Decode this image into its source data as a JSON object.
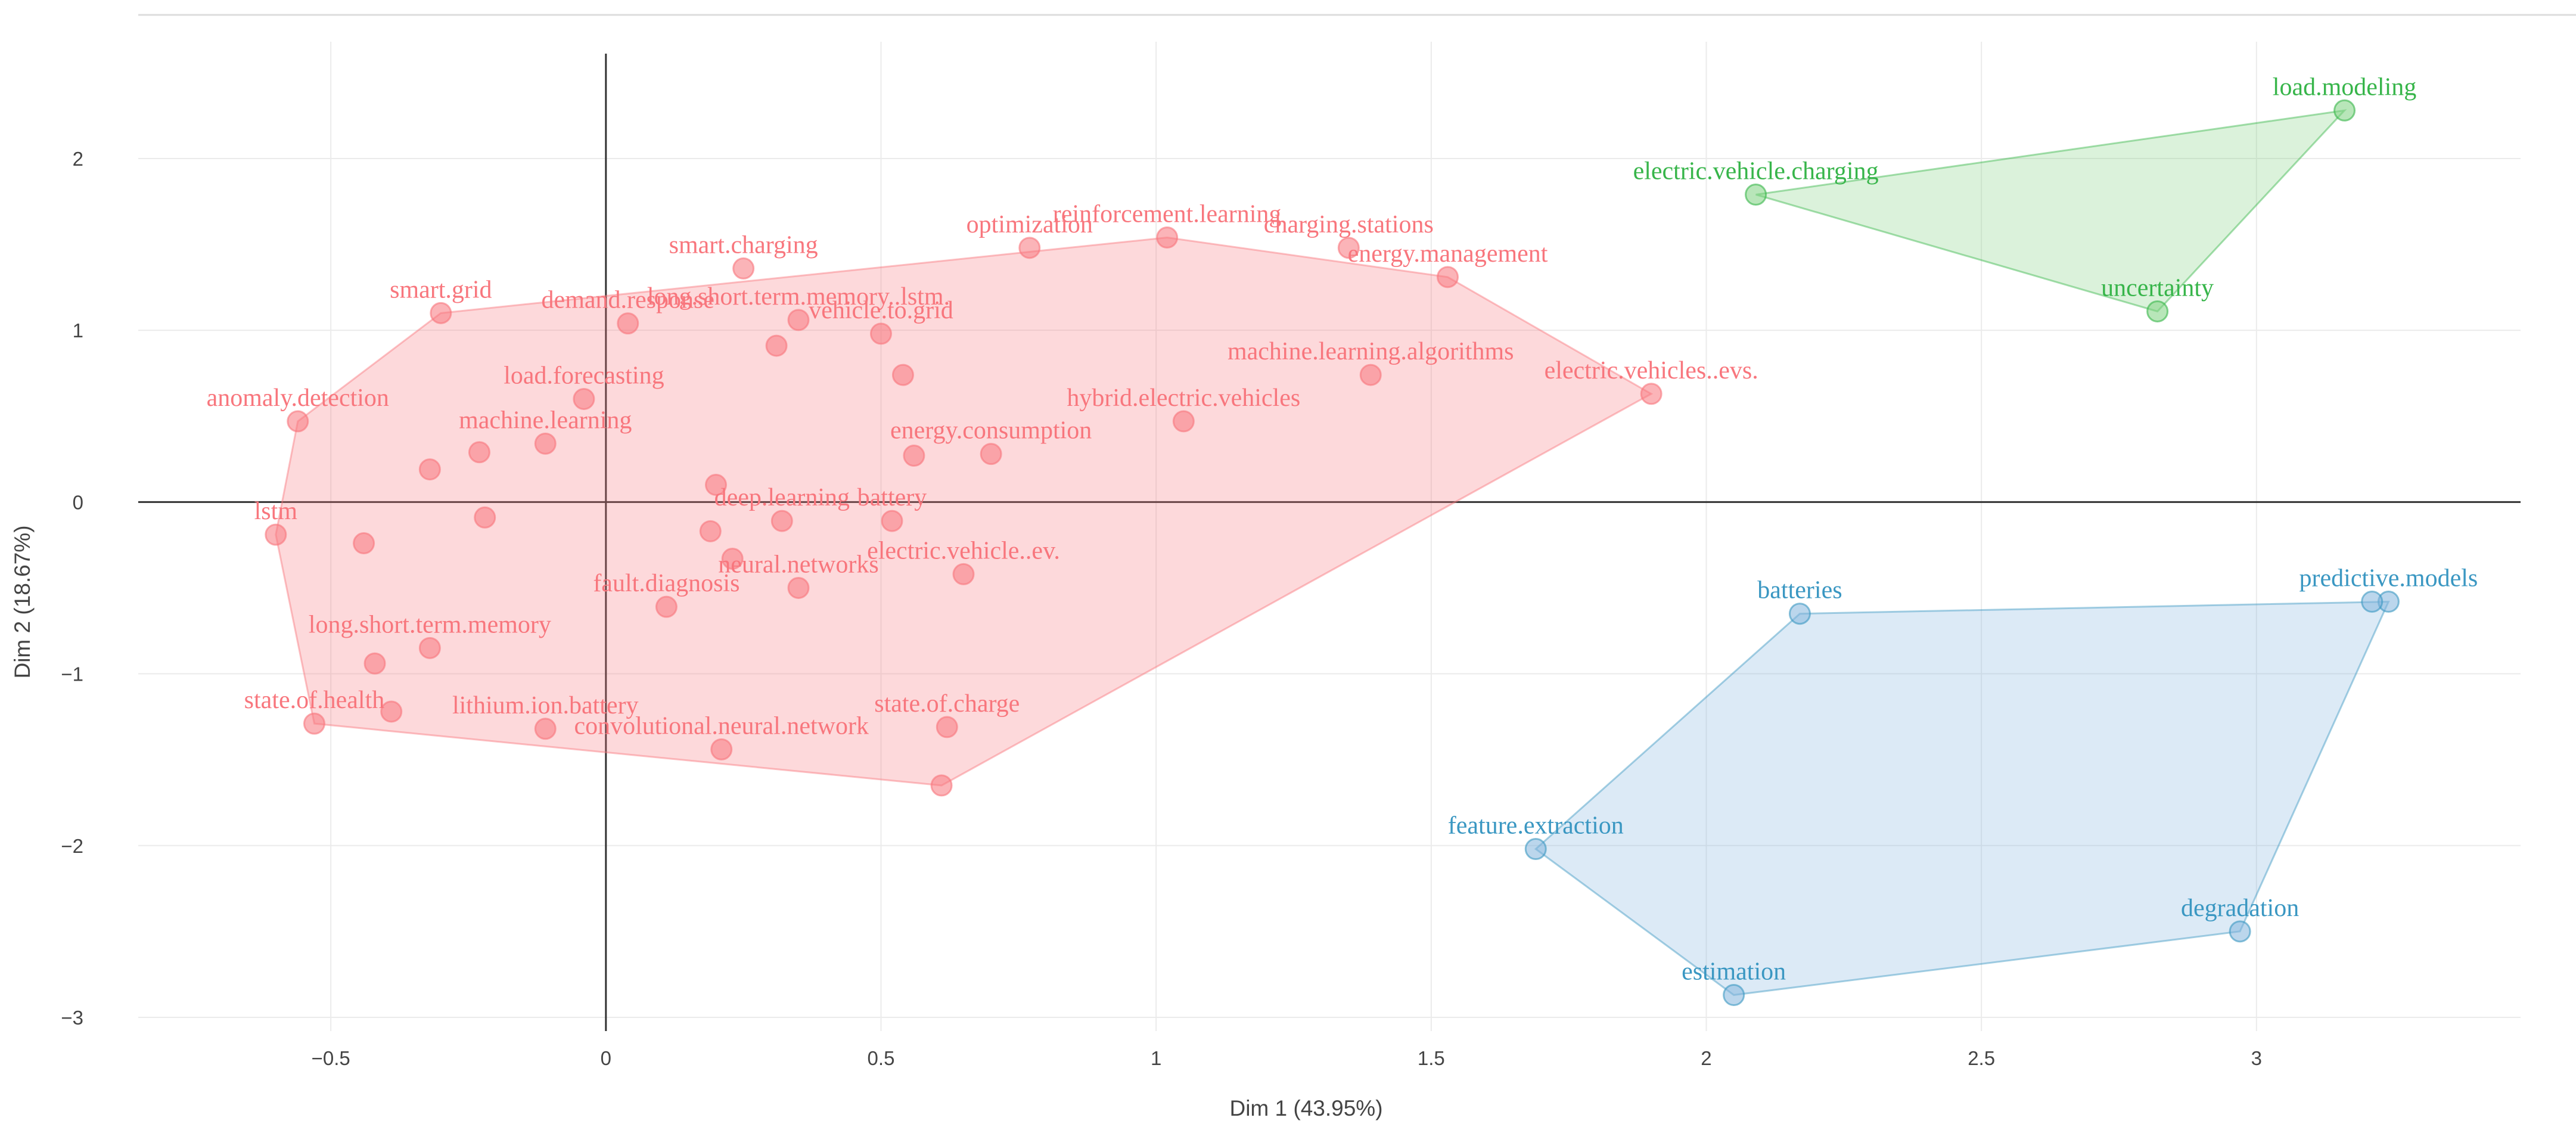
{
  "chart_data": {
    "type": "scatter",
    "title": "",
    "xlabel": "Dim 1 (43.95%)",
    "ylabel": "Dim 2 (18.67%)",
    "xlim": [
      -0.85,
      3.48
    ],
    "ylim": [
      -3.08,
      2.68
    ],
    "xticks": [
      -0.5,
      0,
      0.5,
      1,
      1.5,
      2,
      2.5,
      3
    ],
    "xtick_labels": [
      "−0.5",
      "0",
      "0.5",
      "1",
      "1.5",
      "2",
      "2.5",
      "3"
    ],
    "yticks": [
      -3,
      -2,
      -1,
      0,
      1,
      2
    ],
    "ytick_labels": [
      "−3",
      "−2",
      "−1",
      "0",
      "1",
      "2"
    ],
    "grid": true,
    "clusters": [
      {
        "id": 1,
        "color": "#f8767d",
        "fill": "#f8767d",
        "hull": [
          [
            -0.6,
            -0.19
          ],
          [
            -0.53,
            -1.29
          ],
          [
            0.61,
            -1.65
          ],
          [
            1.9,
            0.63
          ],
          [
            1.53,
            1.31
          ],
          [
            1.02,
            1.54
          ],
          [
            -0.3,
            1.1
          ],
          [
            -0.56,
            0.47
          ]
        ],
        "points": [
          {
            "label": "anomaly.detection",
            "x": -0.56,
            "y": 0.47
          },
          {
            "label": "smart.grid",
            "x": -0.3,
            "y": 1.1
          },
          {
            "label": "load.forecasting",
            "x": -0.04,
            "y": 0.6
          },
          {
            "label": "machine.learning",
            "x": -0.11,
            "y": 0.34
          },
          {
            "label": "",
            "x": -0.32,
            "y": 0.19
          },
          {
            "label": "",
            "x": -0.23,
            "y": 0.29
          },
          {
            "label": "lstm",
            "x": -0.6,
            "y": -0.19
          },
          {
            "label": "",
            "x": -0.44,
            "y": -0.24
          },
          {
            "label": "",
            "x": -0.22,
            "y": -0.09
          },
          {
            "label": "long.short.term.memory",
            "x": -0.32,
            "y": -0.85
          },
          {
            "label": "",
            "x": -0.42,
            "y": -0.94
          },
          {
            "label": "state.of.health",
            "x": -0.53,
            "y": -1.29
          },
          {
            "label": "",
            "x": -0.39,
            "y": -1.22
          },
          {
            "label": "lithium.ion.battery",
            "x": -0.11,
            "y": -1.32
          },
          {
            "label": "demand.response",
            "x": 0.04,
            "y": 1.04
          },
          {
            "label": "smart.charging",
            "x": 0.25,
            "y": 1.36
          },
          {
            "label": "long.short.term.memory..lstm.",
            "x": 0.35,
            "y": 1.06
          },
          {
            "label": "",
            "x": 0.31,
            "y": 0.91
          },
          {
            "label": "vehicle.to.grid",
            "x": 0.5,
            "y": 0.98
          },
          {
            "label": "",
            "x": 0.54,
            "y": 0.74
          },
          {
            "label": "deep.learning",
            "x": 0.32,
            "y": -0.11
          },
          {
            "label": "",
            "x": 0.2,
            "y": 0.1
          },
          {
            "label": "",
            "x": 0.19,
            "y": -0.17
          },
          {
            "label": "neural.networks",
            "x": 0.35,
            "y": -0.5
          },
          {
            "label": "",
            "x": 0.23,
            "y": -0.33
          },
          {
            "label": "fault.diagnosis",
            "x": 0.11,
            "y": -0.61
          },
          {
            "label": "convolutional.neural.network",
            "x": 0.21,
            "y": -1.44
          },
          {
            "label": "battery",
            "x": 0.52,
            "y": -0.11
          },
          {
            "label": "energy.consumption",
            "x": 0.7,
            "y": 0.28
          },
          {
            "label": "",
            "x": 0.56,
            "y": 0.27
          },
          {
            "label": "electric.vehicle..ev.",
            "x": 0.65,
            "y": -0.42
          },
          {
            "label": "state.of.charge",
            "x": 0.62,
            "y": -1.31
          },
          {
            "label": "",
            "x": 0.61,
            "y": -1.65
          },
          {
            "label": "optimization",
            "x": 0.77,
            "y": 1.48
          },
          {
            "label": "reinforcement.learning",
            "x": 1.02,
            "y": 1.54
          },
          {
            "label": "charging.stations",
            "x": 1.35,
            "y": 1.48
          },
          {
            "label": "energy.management",
            "x": 1.53,
            "y": 1.31
          },
          {
            "label": "machine.learning.algorithms",
            "x": 1.39,
            "y": 0.74
          },
          {
            "label": "hybrid.electric.vehicles",
            "x": 1.05,
            "y": 0.47
          },
          {
            "label": "electric.vehicles..evs.",
            "x": 1.9,
            "y": 0.63
          }
        ]
      },
      {
        "id": 2,
        "color": "#3a97c2",
        "fill": "#83b5dd",
        "hull": [
          [
            1.69,
            -2.02
          ],
          [
            2.17,
            -0.65
          ],
          [
            3.24,
            -0.58
          ],
          [
            2.97,
            -2.5
          ],
          [
            2.05,
            -2.87
          ]
        ],
        "points": [
          {
            "label": "batteries",
            "x": 2.17,
            "y": -0.65
          },
          {
            "label": "predictive.models",
            "x": 3.24,
            "y": -0.58
          },
          {
            "label": "",
            "x": 3.21,
            "y": -0.58
          },
          {
            "label": "feature.extraction",
            "x": 1.69,
            "y": -2.02
          },
          {
            "label": "degradation",
            "x": 2.97,
            "y": -2.5
          },
          {
            "label": "estimation",
            "x": 2.05,
            "y": -2.87
          }
        ]
      },
      {
        "id": 3,
        "color": "#37b54a",
        "fill": "#7dd27f",
        "hull": [
          [
            2.09,
            1.79
          ],
          [
            3.16,
            2.28
          ],
          [
            2.82,
            1.11
          ]
        ],
        "points": [
          {
            "label": "electric.vehicle.charging",
            "x": 2.09,
            "y": 1.79
          },
          {
            "label": "load.modeling",
            "x": 3.16,
            "y": 2.28
          },
          {
            "label": "uncertainty",
            "x": 2.82,
            "y": 1.11
          }
        ]
      }
    ]
  }
}
